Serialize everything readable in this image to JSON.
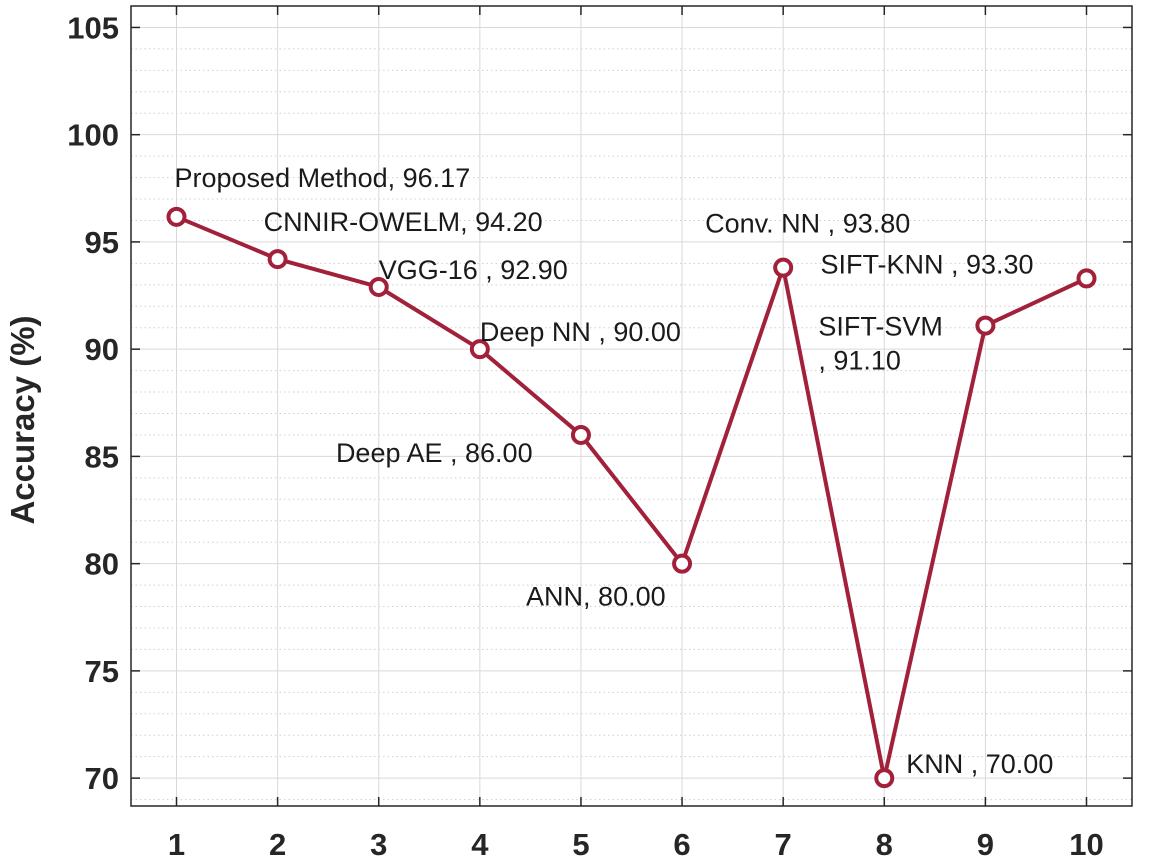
{
  "chart_data": {
    "type": "line",
    "title": "",
    "xlabel": "",
    "ylabel": "Accuracy (%)",
    "x": [
      1,
      2,
      3,
      4,
      5,
      6,
      7,
      8,
      9,
      10
    ],
    "xlim": [
      0.55,
      10.45
    ],
    "ylim": [
      68.7,
      106
    ],
    "xticks": [
      1,
      2,
      3,
      4,
      5,
      6,
      7,
      8,
      9,
      10
    ],
    "yticks": [
      70,
      75,
      80,
      85,
      90,
      95,
      100,
      105
    ],
    "grid": true,
    "minor_grid": true,
    "series": [
      {
        "color": "#a2213a",
        "marker": "circle",
        "values": [
          96.17,
          94.2,
          92.9,
          90.0,
          86.0,
          80.0,
          93.8,
          70.0,
          91.1,
          93.3
        ]
      }
    ],
    "annotations": [
      {
        "x": 1,
        "lines": [
          "Proposed Method, 96.17"
        ]
      },
      {
        "x": 2,
        "lines": [
          "CNNIR-OWELM, 94.20"
        ]
      },
      {
        "x": 3,
        "lines": [
          "VGG-16 , 92.90"
        ]
      },
      {
        "x": 4,
        "lines": [
          "Deep NN , 90.00"
        ]
      },
      {
        "x": 5,
        "lines": [
          "Deep AE , 86.00"
        ]
      },
      {
        "x": 6,
        "lines": [
          "ANN, 80.00"
        ]
      },
      {
        "x": 7,
        "lines": [
          "Conv. NN , 93.80"
        ]
      },
      {
        "x": 8,
        "lines": [
          "KNN , 70.00"
        ]
      },
      {
        "x": 9,
        "lines": [
          "SIFT-SVM",
          ", 91.10"
        ]
      },
      {
        "x": 10,
        "lines": [
          "SIFT-KNN , 93.30"
        ]
      }
    ]
  }
}
